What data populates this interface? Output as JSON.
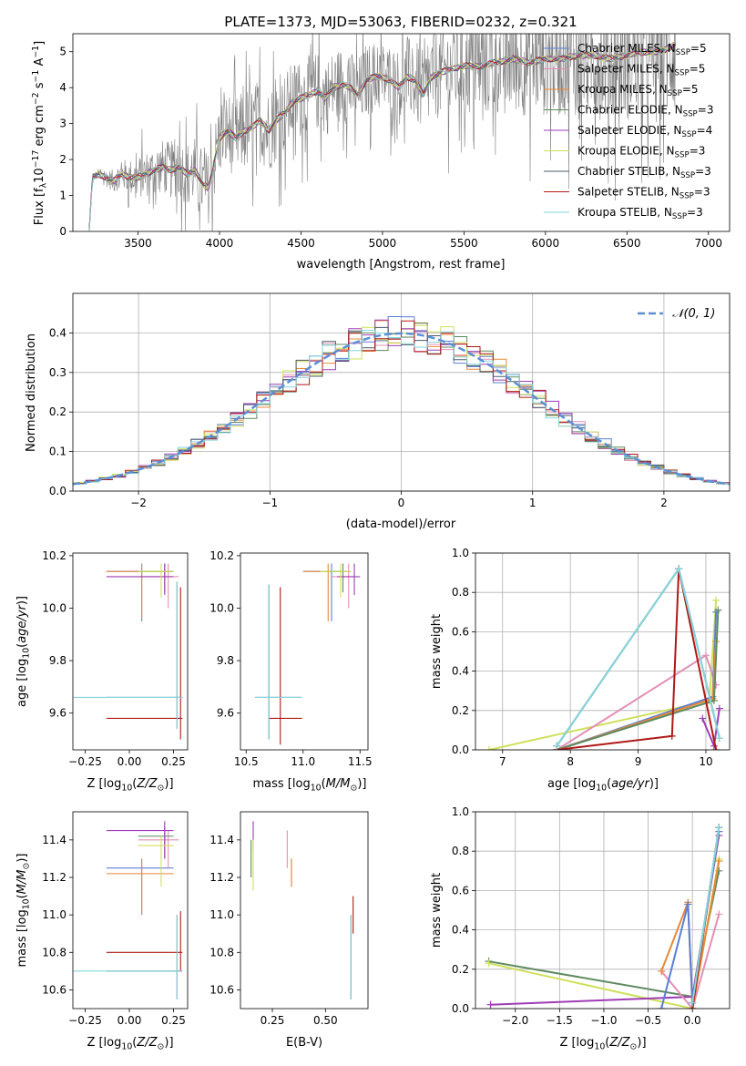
{
  "title": "PLATE=1373, MJD=53063, FIBERID=0232, z=0.321",
  "colors": {
    "Chabrier MILES": "#5b7fd6",
    "Salpeter MILES": "#e48fb4",
    "Kroupa MILES": "#e8893a",
    "Chabrier ELODIE": "#5f8a60",
    "Salpeter ELODIE": "#a03cb6",
    "Kroupa ELODIE": "#cfe05a",
    "Chabrier STELIB": "#4a5a6a",
    "Salpeter STELIB": "#b01818",
    "Kroupa STELIB": "#86d6dc",
    "gauss": "#5b8fd6"
  },
  "chart_data": [
    {
      "id": "spectrum",
      "type": "line",
      "xlabel": "wavelength [Angstrom, rest frame]",
      "ylabel": "Flux [f_λ 10^-17 erg cm^-2 s^-1 A^-1]",
      "xlim": [
        3100,
        7130
      ],
      "ylim": [
        0,
        5.5
      ],
      "xticks": [
        3500,
        4000,
        4500,
        5000,
        5500,
        6000,
        6500,
        7000
      ],
      "yticks": [
        0,
        1,
        2,
        3,
        4,
        5
      ],
      "data_color": "#808080",
      "model_x": [
        3200,
        3220,
        3260,
        3300,
        3350,
        3400,
        3450,
        3500,
        3550,
        3600,
        3650,
        3700,
        3750,
        3800,
        3850,
        3900,
        3930,
        3950,
        3970,
        4000,
        4050,
        4100,
        4150,
        4200,
        4250,
        4300,
        4350,
        4400,
        4450,
        4500,
        4550,
        4600,
        4650,
        4700,
        4750,
        4800,
        4850,
        4900,
        4950,
        5000,
        5050,
        5100,
        5150,
        5200,
        5250,
        5300,
        5400,
        5500,
        5600,
        5700,
        5800,
        5900,
        6000,
        6100,
        6200,
        6300,
        6400,
        6500,
        6600,
        6700,
        6800
      ],
      "model_y": [
        0,
        1.5,
        1.6,
        1.5,
        1.4,
        1.6,
        1.5,
        1.5,
        1.6,
        1.7,
        1.8,
        1.7,
        1.8,
        1.6,
        1.7,
        1.3,
        1.2,
        1.5,
        2.0,
        2.6,
        2.8,
        2.6,
        2.8,
        2.9,
        3.1,
        2.8,
        3.1,
        3.3,
        3.6,
        3.7,
        3.8,
        3.9,
        3.7,
        4.0,
        4.1,
        4.0,
        3.8,
        4.2,
        4.3,
        4.3,
        4.2,
        4.0,
        4.3,
        4.2,
        3.8,
        4.3,
        4.5,
        4.6,
        4.6,
        4.7,
        4.8,
        4.7,
        4.8,
        4.8,
        4.9,
        4.9,
        4.8,
        4.9,
        5.0,
        5.0,
        5.2
      ],
      "data_xrange": [
        3200,
        6800
      ],
      "data_noise": [
        [
          3200,
          0.05
        ],
        [
          3500,
          0.6
        ],
        [
          3900,
          1.0
        ],
        [
          4200,
          1.2
        ],
        [
          5000,
          1.0
        ],
        [
          5500,
          1.4
        ],
        [
          6000,
          1.6
        ],
        [
          6800,
          2.0
        ]
      ],
      "legend": [
        {
          "label": "Chabrier MILES, N",
          "sub": "SSP",
          "value": "=5",
          "color_key": "Chabrier MILES"
        },
        {
          "label": "Salpeter MILES, N",
          "sub": "SSP",
          "value": "=5",
          "color_key": "Salpeter MILES"
        },
        {
          "label": "Kroupa MILES, N",
          "sub": "SSP",
          "value": "=5",
          "color_key": "Kroupa MILES"
        },
        {
          "label": "Chabrier ELODIE, N",
          "sub": "SSP",
          "value": "=3",
          "color_key": "Chabrier ELODIE"
        },
        {
          "label": "Salpeter ELODIE, N",
          "sub": "SSP",
          "value": "=4",
          "color_key": "Salpeter ELODIE"
        },
        {
          "label": "Kroupa ELODIE, N",
          "sub": "SSP",
          "value": "=3",
          "color_key": "Kroupa ELODIE"
        },
        {
          "label": "Chabrier STELIB, N",
          "sub": "SSP",
          "value": "=3",
          "color_key": "Chabrier STELIB"
        },
        {
          "label": "Salpeter STELIB, N",
          "sub": "SSP",
          "value": "=3",
          "color_key": "Salpeter STELIB"
        },
        {
          "label": "Kroupa STELIB, N",
          "sub": "SSP",
          "value": "=3",
          "color_key": "Kroupa STELIB"
        }
      ],
      "legend_placement": "upper-right"
    },
    {
      "id": "residuals",
      "type": "histogram",
      "xlabel": "(data-model)/error",
      "ylabel": "Normed distribution",
      "xlim": [
        -2.5,
        2.5
      ],
      "ylim": [
        0,
        0.5
      ],
      "xticks": [
        -2,
        -1,
        0,
        1,
        2
      ],
      "yticks": [
        0.0,
        0.1,
        0.2,
        0.3,
        0.4
      ],
      "grid": true,
      "bin_width": 0.1,
      "gauss_label": "𝒩(0, 1)",
      "legend_placement": "upper-right"
    },
    {
      "id": "age_vs_Z",
      "type": "errorbar",
      "xlabel": "Z [log10(Z/Z⊙)]",
      "ylabel": "age [log10(age/yr)]",
      "xlim": [
        -0.32,
        0.33
      ],
      "ylim": [
        9.46,
        10.21
      ],
      "xticks": [
        -0.25,
        0.0,
        0.25
      ],
      "yticks": [
        9.6,
        9.8,
        10.0,
        10.2
      ],
      "points": [
        {
          "key": "Chabrier MILES",
          "x": 0.07,
          "y": 10.14,
          "xlo": -0.13,
          "xhi": 0.25,
          "ylo": 9.95,
          "yhi": 10.17
        },
        {
          "key": "Salpeter MILES",
          "x": 0.22,
          "y": 10.12,
          "xlo": 0.05,
          "xhi": 0.28,
          "ylo": 10.0,
          "yhi": 10.17
        },
        {
          "key": "Kroupa MILES",
          "x": 0.07,
          "y": 10.14,
          "xlo": -0.13,
          "xhi": 0.25,
          "ylo": 9.96,
          "yhi": 10.17
        },
        {
          "key": "Chabrier ELODIE",
          "x": 0.2,
          "y": 10.14,
          "xlo": 0.05,
          "xhi": 0.25,
          "ylo": 10.06,
          "yhi": 10.17
        },
        {
          "key": "Salpeter ELODIE",
          "x": 0.2,
          "y": 10.12,
          "xlo": -0.13,
          "xhi": 0.25,
          "ylo": 10.05,
          "yhi": 10.17
        },
        {
          "key": "Kroupa ELODIE",
          "x": 0.18,
          "y": 10.14,
          "xlo": 0.05,
          "xhi": 0.25,
          "ylo": 10.04,
          "yhi": 10.17
        },
        {
          "key": "Chabrier STELIB",
          "x": 0.27,
          "y": 9.66,
          "xlo": -0.13,
          "xhi": 0.3,
          "ylo": 9.54,
          "yhi": 10.1
        },
        {
          "key": "Salpeter STELIB",
          "x": 0.29,
          "y": 9.58,
          "xlo": -0.13,
          "xhi": 0.3,
          "ylo": 9.5,
          "yhi": 10.08
        },
        {
          "key": "Kroupa STELIB",
          "x": 0.27,
          "y": 9.66,
          "xlo": -0.32,
          "xhi": 0.3,
          "ylo": 9.54,
          "yhi": 10.1
        }
      ]
    },
    {
      "id": "age_vs_mass",
      "type": "errorbar",
      "xlabel": "mass [log10(M/M⊙)]",
      "ylabel": "",
      "xlim": [
        10.45,
        11.57
      ],
      "ylim": [
        9.46,
        10.21
      ],
      "xticks": [
        10.5,
        11.0,
        11.5
      ],
      "yticks": [
        9.6,
        9.8,
        10.0,
        10.2
      ],
      "points": [
        {
          "key": "Chabrier MILES",
          "x": 11.25,
          "y": 10.14,
          "xlo": 11.0,
          "xhi": 11.35,
          "ylo": 9.95,
          "yhi": 10.17
        },
        {
          "key": "Salpeter MILES",
          "x": 11.4,
          "y": 10.12,
          "xlo": 11.25,
          "xhi": 11.45,
          "ylo": 10.0,
          "yhi": 10.17
        },
        {
          "key": "Kroupa MILES",
          "x": 11.22,
          "y": 10.14,
          "xlo": 11.0,
          "xhi": 11.35,
          "ylo": 9.95,
          "yhi": 10.17
        },
        {
          "key": "Chabrier ELODIE",
          "x": 11.35,
          "y": 10.14,
          "xlo": 11.2,
          "xhi": 11.42,
          "ylo": 10.06,
          "yhi": 10.17
        },
        {
          "key": "Salpeter ELODIE",
          "x": 11.45,
          "y": 10.12,
          "xlo": 11.3,
          "xhi": 11.5,
          "ylo": 10.05,
          "yhi": 10.17
        },
        {
          "key": "Kroupa ELODIE",
          "x": 11.33,
          "y": 10.14,
          "xlo": 11.15,
          "xhi": 11.42,
          "ylo": 10.04,
          "yhi": 10.17
        },
        {
          "key": "Chabrier STELIB",
          "x": 10.7,
          "y": 9.66,
          "xlo": 10.58,
          "xhi": 10.99,
          "ylo": 9.5,
          "yhi": 10.09
        },
        {
          "key": "Salpeter STELIB",
          "x": 10.8,
          "y": 9.58,
          "xlo": 10.7,
          "xhi": 10.99,
          "ylo": 9.48,
          "yhi": 10.08
        },
        {
          "key": "Kroupa STELIB",
          "x": 10.7,
          "y": 9.66,
          "xlo": 10.58,
          "xhi": 10.99,
          "ylo": 9.5,
          "yhi": 10.09
        }
      ]
    },
    {
      "id": "weight_vs_age",
      "type": "line",
      "xlabel": "age [log10(age/yr)]",
      "ylabel": "mass weight",
      "xlim": [
        6.6,
        10.35
      ],
      "ylim": [
        0,
        1.0
      ],
      "xticks": [
        7,
        8,
        9,
        10
      ],
      "yticks": [
        0.0,
        0.2,
        0.4,
        0.6,
        0.8,
        1.0
      ],
      "grid": true,
      "series": [
        {
          "key": "Kroupa ELODIE",
          "x": [
            6.8,
            10.05,
            10.15
          ],
          "y": [
            0.0,
            0.25,
            0.76
          ]
        },
        {
          "key": "Salpeter ELODIE",
          "x": [
            9.95,
            10.12,
            10.2
          ],
          "y": [
            0.16,
            0.02,
            0.21
          ]
        },
        {
          "key": "Salpeter MILES",
          "x": [
            7.8,
            10.0,
            10.15
          ],
          "y": [
            0.0,
            0.48,
            0.33
          ]
        },
        {
          "key": "Chabrier MILES",
          "x": [
            7.8,
            10.1,
            10.15
          ],
          "y": [
            0.0,
            0.27,
            0.7
          ]
        },
        {
          "key": "Kroupa MILES",
          "x": [
            7.8,
            10.1,
            10.15
          ],
          "y": [
            0.0,
            0.26,
            0.55
          ]
        },
        {
          "key": "Chabrier ELODIE",
          "x": [
            7.8,
            10.12,
            10.18
          ],
          "y": [
            0.0,
            0.25,
            0.71
          ]
        },
        {
          "key": "Salpeter STELIB",
          "x": [
            7.8,
            9.5,
            9.6,
            10.15
          ],
          "y": [
            0.0,
            0.07,
            0.92,
            0.0
          ]
        },
        {
          "key": "Chabrier STELIB",
          "x": [
            7.8,
            9.6,
            10.2
          ],
          "y": [
            0.02,
            0.92,
            0.06
          ]
        },
        {
          "key": "Kroupa STELIB",
          "x": [
            7.8,
            9.6,
            10.2
          ],
          "y": [
            0.02,
            0.92,
            0.06
          ]
        }
      ]
    },
    {
      "id": "mass_vs_Z",
      "type": "errorbar",
      "xlabel": "Z [log10(Z/Z⊙)]",
      "ylabel": "mass [log10(M/M⊙)]",
      "xlim": [
        -0.32,
        0.33
      ],
      "ylim": [
        10.5,
        11.55
      ],
      "xticks": [
        -0.25,
        0.0,
        0.25
      ],
      "yticks": [
        10.6,
        10.8,
        11.0,
        11.2,
        11.4
      ],
      "points": [
        {
          "key": "Chabrier MILES",
          "x": 0.07,
          "y": 11.25,
          "xlo": -0.13,
          "xhi": 0.25,
          "ylo": 11.0,
          "yhi": 11.3
        },
        {
          "key": "Salpeter MILES",
          "x": 0.22,
          "y": 11.4,
          "xlo": 0.05,
          "xhi": 0.28,
          "ylo": 11.25,
          "yhi": 11.45
        },
        {
          "key": "Kroupa MILES",
          "x": 0.07,
          "y": 11.22,
          "xlo": -0.13,
          "xhi": 0.25,
          "ylo": 11.0,
          "yhi": 11.3
        },
        {
          "key": "Chabrier ELODIE",
          "x": 0.2,
          "y": 11.42,
          "xlo": 0.05,
          "xhi": 0.25,
          "ylo": 11.3,
          "yhi": 11.47
        },
        {
          "key": "Salpeter ELODIE",
          "x": 0.2,
          "y": 11.45,
          "xlo": -0.13,
          "xhi": 0.25,
          "ylo": 11.3,
          "yhi": 11.5
        },
        {
          "key": "Kroupa ELODIE",
          "x": 0.18,
          "y": 11.37,
          "xlo": 0.05,
          "xhi": 0.25,
          "ylo": 11.15,
          "yhi": 11.42
        },
        {
          "key": "Chabrier STELIB",
          "x": 0.27,
          "y": 10.7,
          "xlo": -0.13,
          "xhi": 0.3,
          "ylo": 10.55,
          "yhi": 11.0
        },
        {
          "key": "Salpeter STELIB",
          "x": 0.29,
          "y": 10.8,
          "xlo": -0.13,
          "xhi": 0.3,
          "ylo": 10.7,
          "yhi": 11.02
        },
        {
          "key": "Kroupa STELIB",
          "x": 0.27,
          "y": 10.7,
          "xlo": -0.32,
          "xhi": 0.3,
          "ylo": 10.55,
          "yhi": 11.0
        }
      ]
    },
    {
      "id": "mass_vs_EBV",
      "type": "errorbar",
      "xlabel": "E(B-V)",
      "ylabel": "",
      "xlim": [
        0.1,
        0.7
      ],
      "ylim": [
        10.5,
        11.55
      ],
      "xticks": [
        0.25,
        0.5
      ],
      "yticks": [
        10.6,
        10.8,
        11.0,
        11.2,
        11.4
      ],
      "points": [
        {
          "key": "Chabrier MILES",
          "x": 0.34,
          "y": 11.22,
          "xlo": 0.34,
          "xhi": 0.34,
          "ylo": 11.15,
          "yhi": 11.3
        },
        {
          "key": "Salpeter MILES",
          "x": 0.32,
          "y": 11.4,
          "xlo": 0.32,
          "xhi": 0.32,
          "ylo": 11.25,
          "yhi": 11.45
        },
        {
          "key": "Kroupa MILES",
          "x": 0.34,
          "y": 11.22,
          "xlo": 0.34,
          "xhi": 0.34,
          "ylo": 11.15,
          "yhi": 11.3
        },
        {
          "key": "Chabrier ELODIE",
          "x": 0.15,
          "y": 11.3,
          "xlo": 0.15,
          "xhi": 0.15,
          "ylo": 11.2,
          "yhi": 11.4
        },
        {
          "key": "Salpeter ELODIE",
          "x": 0.16,
          "y": 11.45,
          "xlo": 0.16,
          "xhi": 0.16,
          "ylo": 11.35,
          "yhi": 11.5
        },
        {
          "key": "Kroupa ELODIE",
          "x": 0.16,
          "y": 11.25,
          "xlo": 0.16,
          "xhi": 0.16,
          "ylo": 11.13,
          "yhi": 11.4
        },
        {
          "key": "Chabrier STELIB",
          "x": 0.62,
          "y": 10.7,
          "xlo": 0.62,
          "xhi": 0.62,
          "ylo": 10.55,
          "yhi": 11.0
        },
        {
          "key": "Salpeter STELIB",
          "x": 0.63,
          "y": 11.0,
          "xlo": 0.63,
          "xhi": 0.63,
          "ylo": 10.9,
          "yhi": 11.1
        },
        {
          "key": "Kroupa STELIB",
          "x": 0.62,
          "y": 10.7,
          "xlo": 0.62,
          "xhi": 0.62,
          "ylo": 10.55,
          "yhi": 11.0
        }
      ]
    },
    {
      "id": "weight_vs_Z",
      "type": "line",
      "xlabel": "Z [log10(Z/Z⊙)]",
      "ylabel": "mass weight",
      "xlim": [
        -2.45,
        0.42
      ],
      "ylim": [
        0,
        1.0
      ],
      "xticks": [
        -2.0,
        -1.5,
        -1.0,
        -0.5,
        0.0
      ],
      "yticks": [
        0.0,
        0.2,
        0.4,
        0.6,
        0.8,
        1.0
      ],
      "grid": true,
      "series": [
        {
          "key": "Chabrier ELODIE",
          "x": [
            -2.3,
            0.0,
            0.3
          ],
          "y": [
            0.24,
            0.06,
            0.7
          ]
        },
        {
          "key": "Kroupa ELODIE",
          "x": [
            -2.3,
            0.0,
            0.3
          ],
          "y": [
            0.23,
            0.0,
            0.76
          ]
        },
        {
          "key": "Salpeter ELODIE",
          "x": [
            -2.28,
            0.0,
            0.3
          ],
          "y": [
            0.02,
            0.06,
            0.88
          ]
        },
        {
          "key": "Salpeter MILES",
          "x": [
            -0.35,
            0.0,
            0.3
          ],
          "y": [
            0.19,
            0.0,
            0.48
          ]
        },
        {
          "key": "Kroupa MILES",
          "x": [
            -0.35,
            -0.05,
            0.0,
            0.3
          ],
          "y": [
            0.19,
            0.54,
            0.0,
            0.75
          ]
        },
        {
          "key": "Chabrier MILES",
          "x": [
            -0.35,
            -0.05,
            0.0,
            0.3
          ],
          "y": [
            0.0,
            0.53,
            0.03,
            0.9
          ]
        },
        {
          "key": "Salpeter STELIB",
          "x": [
            0.0,
            0.3
          ],
          "y": [
            0.0,
            0.92
          ]
        },
        {
          "key": "Chabrier STELIB",
          "x": [
            0.0,
            0.3
          ],
          "y": [
            0.03,
            0.92
          ]
        },
        {
          "key": "Kroupa STELIB",
          "x": [
            0.0,
            0.3
          ],
          "y": [
            0.03,
            0.92
          ]
        }
      ]
    }
  ]
}
